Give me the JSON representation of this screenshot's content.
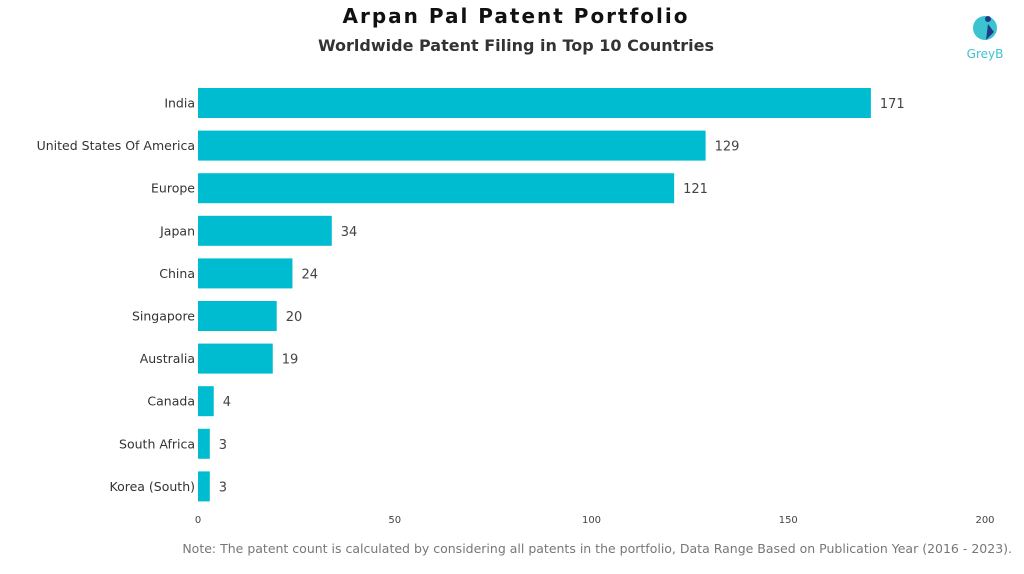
{
  "chart_data": {
    "type": "bar",
    "orientation": "horizontal",
    "title": "Arpan Pal Patent Portfolio",
    "subtitle": "Worldwide Patent Filing in Top 10 Countries",
    "categories": [
      "India",
      "United States Of America",
      "Europe",
      "Japan",
      "China",
      "Singapore",
      "Australia",
      "Canada",
      "South Africa",
      "Korea (South)"
    ],
    "values": [
      171,
      129,
      121,
      34,
      24,
      20,
      19,
      4,
      3,
      3
    ],
    "xlim": [
      0,
      200
    ],
    "xticks": [
      0,
      50,
      100,
      150,
      200
    ],
    "xlabel": "",
    "ylabel": "",
    "grid": false,
    "bar_color": "#00BCD0",
    "note": "Note: The patent count is calculated by considering all patents in the portfolio, Data Range Based on Publication Year (2016 - 2023)."
  },
  "logo": {
    "text": "GreyB",
    "color": "#3CC3D0"
  }
}
